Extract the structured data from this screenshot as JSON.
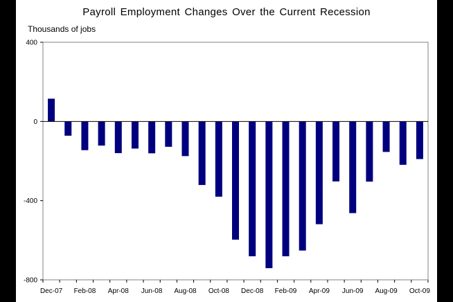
{
  "chart_data": {
    "type": "bar",
    "title": "Payroll Employment  Changes Over the Current Recession",
    "ylabel": "Thousands of jobs",
    "xlabel": "",
    "ylim": [
      -800,
      400
    ],
    "yticks": [
      "400",
      "0",
      "-400",
      "-800"
    ],
    "ytick_values": [
      400,
      0,
      -400,
      -800
    ],
    "grid": false,
    "legend": "none",
    "bar_color": "#00007f",
    "categories": [
      "Dec-07",
      "Jan-08",
      "Feb-08",
      "Mar-08",
      "Apr-08",
      "May-08",
      "Jun-08",
      "Jul-08",
      "Aug-08",
      "Sep-08",
      "Oct-08",
      "Nov-08",
      "Dec-08",
      "Jan-09",
      "Feb-09",
      "Mar-09",
      "Apr-09",
      "May-09",
      "Jun-09",
      "Jul-09",
      "Aug-09",
      "Sep-09",
      "Oct-09"
    ],
    "x_tick_labels": [
      "Dec-07",
      "",
      "Feb-08",
      "",
      "Apr-08",
      "",
      "Jun-08",
      "",
      "Aug-08",
      "",
      "Oct-08",
      "",
      "Dec-08",
      "",
      "Feb-09",
      "",
      "Apr-09",
      "",
      "Jun-09",
      "",
      "Aug-09",
      "",
      "Oct-09"
    ],
    "values": [
      115,
      -72,
      -145,
      -122,
      -160,
      -137,
      -161,
      -128,
      -175,
      -321,
      -380,
      -597,
      -681,
      -741,
      -681,
      -652,
      -519,
      -303,
      -463,
      -304,
      -154,
      -219,
      -190
    ]
  }
}
